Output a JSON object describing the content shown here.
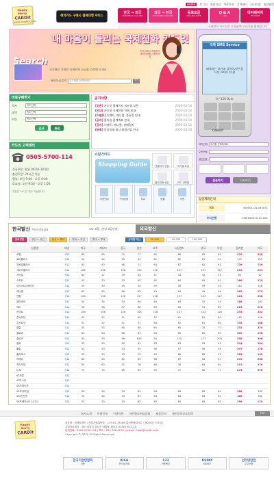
{
  "topnav": [
    "HOME",
    "로그인",
    "회원가입",
    "주문조회",
    "고객센터",
    "사이트맵",
    "회원탈퇴"
  ],
  "logo": {
    "line1": "Happy Merry",
    "brand": "CARDit",
    "line3": "www.cardit.co.kr"
  },
  "top_banner": "해외카드 구매시 결제대행 서비스",
  "mainnav": [
    {
      "label": "한국 → 외국",
      "sub": "OVERSEAS CALLING"
    },
    {
      "label": "외국 → 한국",
      "sub": "INCOMING CALLING"
    },
    {
      "label": "문로요금",
      "sub": "CALLING RATE"
    },
    {
      "label": "Q & A",
      "sub": "FAQ"
    },
    {
      "label": "마이페이지",
      "sub": "MY PAGE"
    }
  ],
  "subnav": "국제전화 카드전문 쇼핑몰에 오신것을 환영합니다",
  "hero": {
    "title": "내 마음이 들리는 국제전화 카드잇",
    "search": "Search",
    "desc": "국가별로 저렴한 국제전화 요금을 검색해 보세요.",
    "form_label": "통화요금검색",
    "input_placeholder": "국가명을 입력하세요",
    "form_button": "검색",
    "caption": "카드잇에서 저렴하게 국제전화를 사용하세요"
  },
  "sms": {
    "title": "국제 SMS Service",
    "message": "메세지는 여기에 입력하시면 됩니다 (80자 이내)",
    "count": "0 / 120 Byte",
    "brand": "CARDiT",
    "fields": [
      {
        "label": "국가선택",
        "value": "국가를 선택하세요"
      },
      {
        "label": "수신번호",
        "value": ""
      },
      {
        "label": "발신번호",
        "value": ""
      }
    ],
    "send": "전송하기",
    "reset": "다시쓰기"
  },
  "buy": {
    "title": "바로구매하기",
    "rows": [
      {
        "label": "국가",
        "value": "카드선택"
      },
      {
        "label": "금액",
        "value": "카드선택"
      },
      {
        "label": "수량",
        "value": "카드선택"
      }
    ],
    "buttons": [
      "신규",
      "충전"
    ]
  },
  "center": {
    "title": "카드잇 고객센터",
    "phone": "0505-5700-114",
    "notes": [
      "신규주문: 평일 09:00-18:00",
      "충전주문: 24시간 가능",
      "평일: 오전 9:00 - 오후 6:00",
      "토요일: 오전 9:00 - 오후 1:00"
    ],
    "footnote": "주문은 24시간 접수 가능합니다"
  },
  "news": {
    "title": "공지사항",
    "items": [
      {
        "tag": "[오픈]",
        "text": "카드잇 홈페이지 리뉴얼 오픈",
        "date": "2005-04-18"
      },
      {
        "tag": "[안내]",
        "text": "카드잇 국제전화 이용 안내",
        "date": "2005-04-18"
      },
      {
        "tag": "[이벤트]",
        "text": "이벤트, 매니멀, 풍유정 안내",
        "date": "2005-04-18"
      },
      {
        "tag": "[공지]",
        "text": "홈타입 합계개표 안내",
        "date": "2005-04-18"
      },
      {
        "tag": "[공지]",
        "text": "이벤트, 매니멀, 판매정지",
        "date": "2005-04-18"
      },
      {
        "tag": "[분류]",
        "text": "동일국제 회사 회원가입 안내",
        "date": "2005-04-18"
      }
    ]
  },
  "guide": {
    "title": "쇼핑가이드",
    "banner": "Shopping Guide",
    "items": [
      "이용안내",
      "구매방법",
      "FAQ",
      "환불",
      "사용"
    ],
    "side": [
      "선물하기 상담",
      "국가별 요금",
      "홀로전화 상담",
      "카드 선택법"
    ]
  },
  "bank": {
    "title": "입금계좌안내",
    "rows": [
      {
        "bank": "KB",
        "acc": "300501-04-005071"
      },
      {
        "bank": "우리은행",
        "acc": "398-069070-12-001"
      },
      {
        "bank": "기업은행",
        "acc": "235-035-52-04125"
      }
    ]
  },
  "rates": {
    "title": "한국발신",
    "subtitle": "주요국가요금표",
    "vat": "VAT 포함, (분당 요금안내)",
    "intl_tab": "외국발신",
    "filters": [
      "통화방법",
      "유선 > 유선",
      "유선 > 휴대",
      "휴대 > 유선",
      "휴대 > 휴대"
    ],
    "amount_label": "금액별 계산",
    "amounts": [
      "30,000",
      "50,000",
      "100,000"
    ],
    "columns": [
      "상품명",
      "배송",
      "미국",
      "캐나다",
      "중국",
      "일본",
      "호주",
      "뉴질랜드",
      "영국",
      "독일",
      "필리핀",
      "태국"
    ],
    "rows": [
      [
        "로얄",
        "무료",
        "63",
        "65",
        "72",
        "77",
        "65",
        "68",
        "65",
        "65",
        "270",
        "250"
      ],
      [
        "로비플러스",
        "무료",
        "54",
        "54",
        "50",
        "69",
        "52",
        "62",
        "61",
        "53",
        "147",
        "167"
      ],
      [
        "모바일플러스",
        "무료",
        "63",
        "63",
        "66",
        "71",
        "64",
        "67",
        "62",
        "63",
        "739",
        "739"
      ],
      [
        "세이브플러스",
        "무료",
        "108",
        "106",
        "128",
        "192",
        "128",
        "127",
        "199",
        "157",
        "239",
        "239"
      ],
      [
        "스마일",
        "무료",
        "63",
        "27",
        "39",
        "43",
        "31",
        "44",
        "32",
        "35",
        "60",
        "47"
      ],
      [
        "스피트",
        "무료",
        "53",
        "53",
        "53",
        "65",
        "60",
        "64",
        "63",
        "62",
        "186",
        "179"
      ],
      [
        "아시아&아메리카",
        "무료",
        "59",
        "59",
        "59",
        "59",
        "59",
        "59",
        "59",
        "59",
        "161",
        "158"
      ],
      [
        "에너빌",
        "무료",
        "63",
        "63",
        "66",
        "63",
        "53",
        "64",
        "45",
        "56",
        "182",
        "172"
      ],
      [
        "엔탑",
        "무료",
        "106",
        "106",
        "126",
        "127",
        "128",
        "127",
        "155",
        "127",
        "224",
        "238"
      ],
      [
        "엘리바이",
        "무료",
        "54",
        "54",
        "54",
        "68",
        "64",
        "64",
        "54",
        "54",
        "188",
        "162"
      ],
      [
        "예스",
        "무료",
        "56",
        "56",
        "57",
        "68",
        "60",
        "63",
        "54",
        "60",
        "213",
        "218"
      ],
      [
        "커넥트",
        "무료",
        "106",
        "106",
        "126",
        "108",
        "128",
        "127",
        "122",
        "128",
        "233",
        "232"
      ],
      [
        "콘서트닷",
        "무료",
        "52",
        "52",
        "51",
        "69",
        "52",
        "61",
        "61",
        "60",
        "162",
        "158"
      ],
      [
        "콘서트잇",
        "무료",
        "52",
        "52",
        "51",
        "51",
        "64",
        "61",
        "61",
        "60",
        "192",
        "188"
      ],
      [
        "클럽",
        "무료",
        "55",
        "55",
        "65",
        "68",
        "65",
        "65",
        "70",
        "70",
        "232",
        "270"
      ],
      [
        "클로버",
        "무료",
        "63",
        "63",
        "66",
        "63",
        "63",
        "65",
        "62",
        "60",
        "200",
        "198"
      ],
      [
        "클로즈",
        "무료",
        "93",
        "93",
        "96",
        "845",
        "95",
        "170",
        "127",
        "204",
        "358",
        "298"
      ],
      [
        "쿨로",
        "무료",
        "53",
        "53",
        "60",
        "61",
        "63",
        "63",
        "55",
        "54",
        "194",
        "184"
      ],
      [
        "튤립",
        "무료",
        "53",
        "53",
        "53",
        "59",
        "56",
        "57",
        "56",
        "58",
        "197",
        "178"
      ],
      [
        "폴리포스",
        "무료",
        "53",
        "53",
        "53",
        "72",
        "60",
        "66",
        "66",
        "55",
        "185",
        "192"
      ],
      [
        "프레쉬",
        "무료",
        "60",
        "63",
        "61",
        "65",
        "68",
        "67",
        "64",
        "61",
        "270",
        "268"
      ],
      [
        "프리미엄",
        "무료",
        "60",
        "60",
        "51",
        "76",
        "68",
        "76",
        "65",
        "64",
        "212",
        "270"
      ],
      [
        "ICN",
        "무료",
        "75",
        "75",
        "65",
        "83",
        "76",
        "77",
        "82",
        "77",
        "274",
        "276"
      ],
      [
        "KT세븐",
        "무료",
        "",
        "",
        "",
        "",
        "",
        "",
        "",
        "",
        "",
        ""
      ],
      [
        "KT아시아",
        "무료",
        "",
        "",
        "",
        "",
        "",
        "",
        "",
        "",
        "",
        ""
      ],
      [
        "SK스마이즈",
        "무료",
        "",
        "",
        "",
        "",
        "",
        "",
        "",
        "",
        "",
        ""
      ],
      [
        "SK프리미엄",
        "무료",
        "54",
        "54",
        "54",
        "69",
        "64",
        "64",
        "64",
        "64",
        "188",
        "162"
      ],
      [
        "SKT컨텐츠",
        "무료",
        "54",
        "54",
        "54",
        "69",
        "64",
        "64",
        "64",
        "64",
        "188",
        "162"
      ],
      [
        "SK프렌즈(011,017)",
        "무료",
        "53",
        "53",
        "53",
        "65",
        "60",
        "64",
        "63",
        "62",
        "186",
        "179"
      ]
    ]
  },
  "footer": {
    "links": [
      "회사소개",
      "이용안내",
      "이용약관",
      "개인정보취급방침",
      "제휴문의",
      "개인정보보호정책"
    ],
    "top": "TOP",
    "info": [
      "상호명 : 이엔트랜스  |  사업자등록번호 : 129-81-26188  통신판매업신고 : 제2009-1313호",
      "사업장소재지 : 경기 성남시 분당구 야탑동 360-1 AS미라 615-1호",
      "문의전화 : 0505-5700-114  |  팩스 : 031-702-6776  |  e-mail : help@cardit.co.kr",
      "Copyright © 카드잇 All Rights Reserved."
    ],
    "certs": [
      {
        "name": "한국기업연합회",
        "sub": "인증"
      },
      {
        "name": "KISA",
        "sub": "전자상거래"
      },
      {
        "name": "123",
        "sub": "인증번호"
      },
      {
        "name": "KSPAY",
        "sub": "KSNET"
      },
      {
        "name": "인터넷안전",
        "sub": "우수인증"
      }
    ]
  }
}
